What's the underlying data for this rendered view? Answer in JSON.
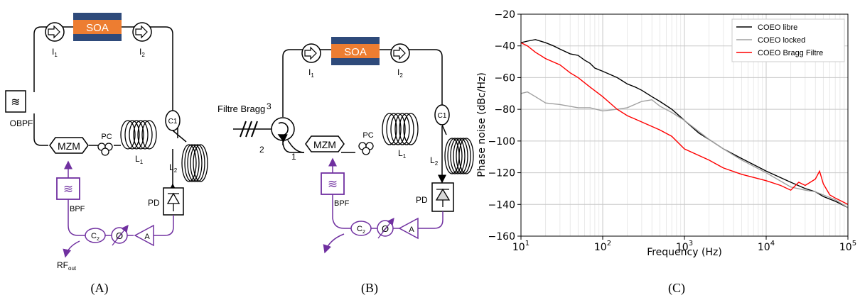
{
  "colors": {
    "purple": "#7030a0",
    "soa_blue": "#2e4a7a",
    "soa_orange": "#ed7d31",
    "black": "#000000",
    "gray": "#a0a0a0",
    "red": "#ff0000"
  },
  "diagram_a": {
    "caption": "(A)",
    "soa": "SOA",
    "isolator1": {
      "main": "I",
      "sub": "1"
    },
    "isolator2": {
      "main": "I",
      "sub": "2"
    },
    "obpf": "OBPF",
    "mzm": "MZM",
    "pc": "PC",
    "l1": {
      "main": "L",
      "sub": "1"
    },
    "l2": {
      "main": "L",
      "sub": "2"
    },
    "c1": "C1",
    "pd": "PD",
    "bpf": "BPF",
    "c2": {
      "main": "C",
      "sub": "2"
    },
    "phase": "Ø",
    "amp": "A",
    "rfout": {
      "main": "RF",
      "sub": "out"
    }
  },
  "diagram_b": {
    "caption": "(B)",
    "soa": "SOA",
    "isolator1": {
      "main": "I",
      "sub": "1"
    },
    "isolator2": {
      "main": "I",
      "sub": "2"
    },
    "bragg": "Filtre Bragg",
    "port1": "1",
    "port2": "2",
    "port3": "3",
    "mzm": "MZM",
    "pc": "PC",
    "l1": {
      "main": "L",
      "sub": "1"
    },
    "l2": {
      "main": "L",
      "sub": "2"
    },
    "c1": "C1",
    "pd": "PD",
    "bpf": "BPF",
    "c2": {
      "main": "C",
      "sub": "2"
    },
    "phase": "Ø",
    "amp": "A"
  },
  "chart_caption": "(C)",
  "chart_data": {
    "type": "line",
    "xlabel": "Frequency (Hz)",
    "ylabel": "Phase noise (dBc/Hz)",
    "xscale": "log",
    "xlim": [
      10,
      100000
    ],
    "ylim": [
      -160,
      -20
    ],
    "xticks": [
      {
        "base": "10",
        "exp": "1"
      },
      {
        "base": "10",
        "exp": "2"
      },
      {
        "base": "10",
        "exp": "3"
      },
      {
        "base": "10",
        "exp": "4"
      },
      {
        "base": "10",
        "exp": "5"
      }
    ],
    "yticks": [
      "−20",
      "−40",
      "−60",
      "−80",
      "−100",
      "−120",
      "−140",
      "−160"
    ],
    "grid": true,
    "legend_position": "top-right",
    "series": [
      {
        "name": "COEO libre",
        "color": "#000000",
        "x": [
          10,
          12,
          15,
          20,
          25,
          30,
          40,
          50,
          60,
          70,
          80,
          100,
          150,
          200,
          250,
          300,
          400,
          500,
          700,
          1000,
          1500,
          2000,
          3000,
          5000,
          10000,
          20000,
          30000,
          40000,
          50000,
          70000,
          100000
        ],
        "y": [
          -38,
          -37,
          -36,
          -38,
          -40,
          -42,
          -45,
          -46,
          -49,
          -51,
          -54,
          -56,
          -60,
          -64,
          -66,
          -68,
          -72,
          -75,
          -80,
          -87,
          -95,
          -99,
          -105,
          -111,
          -119,
          -126,
          -130,
          -132,
          -135,
          -138,
          -142
        ]
      },
      {
        "name": "COEO locked",
        "color": "#a0a0a0",
        "x": [
          10,
          12,
          15,
          20,
          30,
          50,
          70,
          100,
          150,
          200,
          300,
          400,
          500,
          700,
          1000,
          2000,
          3000,
          5000,
          10000,
          20000,
          30000,
          40000,
          50000,
          70000,
          100000
        ],
        "y": [
          -70,
          -69,
          -72,
          -76,
          -77,
          -79,
          -79,
          -81,
          -80,
          -79,
          -75,
          -74,
          -78,
          -82,
          -87,
          -99,
          -105,
          -112,
          -120,
          -129,
          -131,
          -132,
          -134,
          -137,
          -142
        ]
      },
      {
        "name": "COEO Bragg Filtre",
        "color": "#ff0000",
        "x": [
          10,
          12,
          15,
          20,
          30,
          40,
          50,
          70,
          100,
          150,
          200,
          300,
          500,
          700,
          1000,
          2000,
          3000,
          5000,
          10000,
          15000,
          20000,
          25000,
          30000,
          40000,
          45000,
          50000,
          60000,
          70000,
          100000
        ],
        "y": [
          -38,
          -40,
          -44,
          -48,
          -52,
          -57,
          -60,
          -66,
          -72,
          -80,
          -84,
          -88,
          -93,
          -97,
          -105,
          -112,
          -117,
          -121,
          -125,
          -128,
          -131,
          -126,
          -128,
          -124,
          -119,
          -127,
          -134,
          -136,
          -140
        ]
      }
    ]
  }
}
